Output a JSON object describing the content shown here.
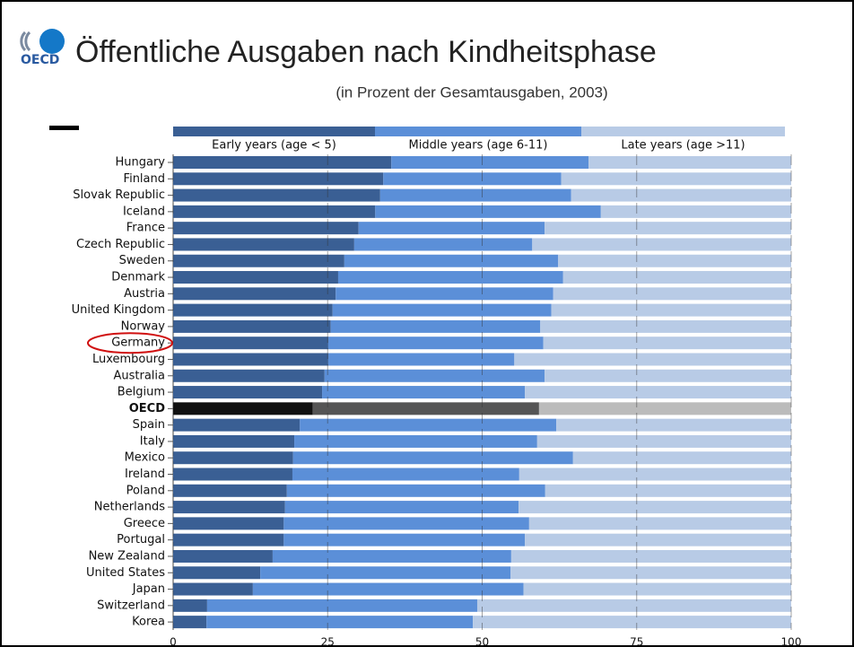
{
  "logo": "OECD",
  "chart_data": {
    "type": "stacked_barh",
    "title": "Öffentliche Ausgaben nach Kindheitsphase",
    "subtitle": "(in Prozent der Gesamtausgaben, 2003)",
    "categories": [
      "Hungary",
      "Finland",
      "Slovak Republic",
      "Iceland",
      "France",
      "Czech Republic",
      "Sweden",
      "Denmark",
      "Austria",
      "United Kingdom",
      "Norway",
      "Germany",
      "Luxembourg",
      "Australia",
      "Belgium",
      "OECD",
      "Spain",
      "Italy",
      "Mexico",
      "Ireland",
      "Poland",
      "Netherlands",
      "Greece",
      "Portugal",
      "New Zealand",
      "United States",
      "Japan",
      "Switzerland",
      "Korea"
    ],
    "series": [
      {
        "name": "Early years (age < 5)",
        "color": "#3a5f94",
        "values": [
          35.3,
          34.0,
          33.5,
          32.7,
          30.0,
          29.3,
          27.7,
          26.7,
          26.3,
          25.8,
          25.5,
          25.1,
          25.1,
          24.5,
          24.1,
          22.6,
          20.5,
          19.6,
          19.4,
          19.3,
          18.4,
          18.1,
          17.9,
          17.9,
          16.1,
          14.1,
          12.9,
          5.5,
          5.4
        ]
      },
      {
        "name": "Middle years (age 6-11)",
        "color": "#5b8fd8",
        "values": [
          31.9,
          28.8,
          30.9,
          36.5,
          30.1,
          28.8,
          34.6,
          36.4,
          35.2,
          35.4,
          33.9,
          34.8,
          30.1,
          35.6,
          32.8,
          36.6,
          41.5,
          39.3,
          45.3,
          36.7,
          41.8,
          37.8,
          39.7,
          39.0,
          38.6,
          40.5,
          43.8,
          43.7,
          43.1
        ]
      },
      {
        "name": "Late years (age >11)",
        "color": "#b8cbe6",
        "values": [
          32.8,
          37.2,
          35.6,
          30.8,
          39.9,
          41.9,
          37.7,
          36.9,
          38.5,
          38.8,
          40.6,
          40.1,
          44.8,
          39.9,
          43.1,
          40.8,
          38.0,
          41.1,
          35.3,
          44.0,
          39.8,
          44.1,
          42.4,
          43.1,
          45.3,
          45.4,
          43.3,
          50.8,
          51.5
        ]
      }
    ],
    "highlight_category_index": 15,
    "highlight_colors": [
      "#111111",
      "#555555",
      "#bbbbbb"
    ],
    "circled_category_index": 11,
    "circle_color": "#d01010",
    "xlim": [
      0,
      100
    ],
    "xticks": [
      0,
      25,
      50,
      75,
      100
    ],
    "grid": true
  }
}
